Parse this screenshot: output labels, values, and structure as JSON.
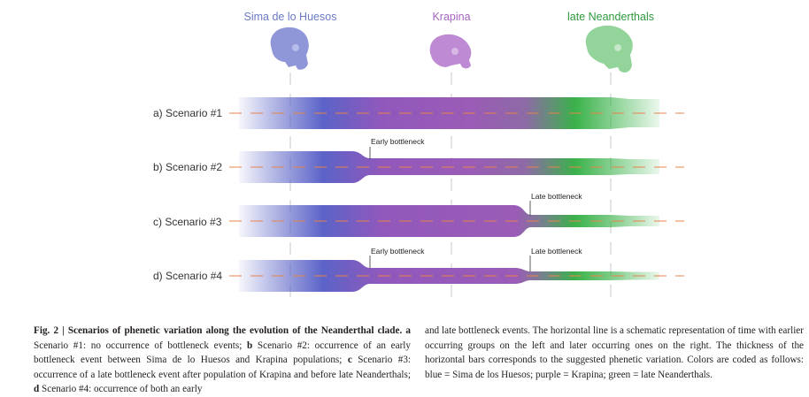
{
  "groups": [
    {
      "name": "Sima de lo Huesos",
      "color": "#6b7bc4"
    },
    {
      "name": "Krapina",
      "color": "#a565c0"
    },
    {
      "name": "late Neanderthals",
      "color": "#2f9a3e"
    }
  ],
  "colors": {
    "blue": "#5a63c6",
    "purple": "#9a5cb6",
    "green": "#3ab24a",
    "axis": "#e8834a"
  },
  "scenarios": [
    {
      "label": "a) Scenario #1",
      "bottlenecks": []
    },
    {
      "label": "b) Scenario #2",
      "bottlenecks": [
        "Early bottleneck"
      ]
    },
    {
      "label": "c) Scenario #3",
      "bottlenecks": [
        "Late bottleneck"
      ]
    },
    {
      "label": "d) Scenario #4",
      "bottlenecks": [
        "Early bottleneck",
        "Late bottleneck"
      ]
    }
  ],
  "bottleneck_labels": {
    "early": "Early bottleneck",
    "late": "Late bottleneck"
  },
  "caption": {
    "title": "Fig. 2 | Scenarios of phenetic variation along the evolution of the Neanderthal clade.",
    "a_letter": "a",
    "a_text": "Scenario #1: no occurrence of bottleneck events;",
    "b_letter": "b",
    "b_text": "Scenario #2: occurrence of an early bottleneck event between Sima de lo Huesos and Krapina populations;",
    "c_letter": "c",
    "c_text": "Scenario #3: occurrence of a late bottleneck event after population of Krapina and before late Neanderthals;",
    "d_letter": "d",
    "d_text": "Scenario #4: occurrence of both an early",
    "right_text": "and late bottleneck events. The horizontal line is a schematic representation of time with earlier occurring groups on the left and later occurring ones on the right. The thickness of the horizontal bars corresponds to the suggested phenetic variation. Colors are coded as follows: blue = Sima de los Huesos; purple = Krapina; green = late Neanderthals."
  }
}
